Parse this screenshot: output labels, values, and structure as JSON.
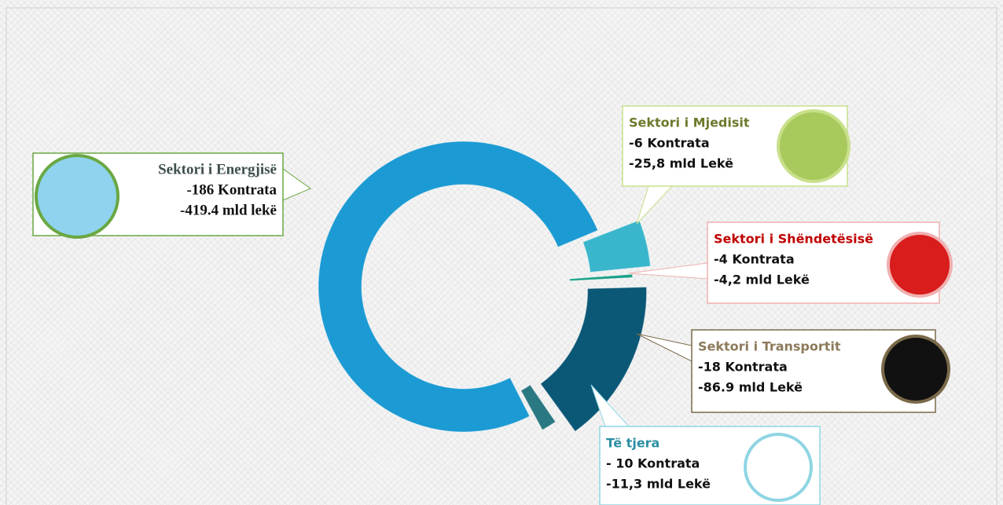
{
  "chart_data": {
    "type": "donut",
    "categories": [
      "Sektori i Energjisë",
      "Sektori i Mjedisit",
      "Sektori i Shëndetësisë",
      "Sektori i Transportit",
      "Të tjera"
    ],
    "contract_labels": [
      "-186 Kontrata",
      "-6 Kontrata",
      "-4 Kontrata",
      "-18 Kontrata",
      "- 10 Kontrata"
    ],
    "values": [
      419.4,
      25.8,
      4.2,
      86.9,
      11.3
    ],
    "value_labels": [
      "-419.4 mld lekë",
      "-25,8 mld Lekë",
      "-4,2 mld Lekë",
      "-86.9 mld Lekë",
      "-11,3 mld Lekë"
    ],
    "colors": [
      "#1c9ad3",
      "#3ab6cc",
      "#17a188",
      "#0b5876",
      "#2a7882"
    ]
  }
}
